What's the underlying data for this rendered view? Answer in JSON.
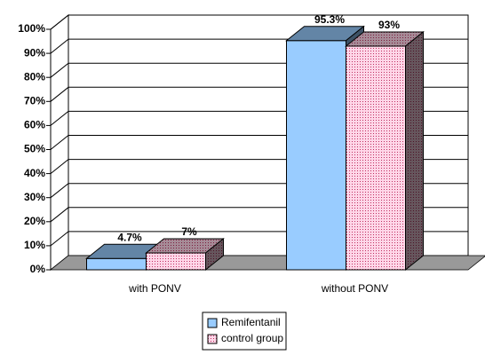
{
  "chart_data": {
    "type": "bar3d",
    "categories": [
      "with PONV",
      "without PONV"
    ],
    "series": [
      {
        "name": "Remifentanil",
        "color": "#99ccff",
        "values": [
          4.7,
          95.3
        ],
        "value_labels": [
          "4.7%",
          "95.3%"
        ]
      },
      {
        "name": "control group",
        "color": "#ffd6e8",
        "values": [
          7,
          93
        ],
        "value_labels": [
          "7%",
          "93%"
        ]
      }
    ],
    "ylim": [
      0,
      100
    ],
    "yticks": [
      {
        "value": 0,
        "label": "0%"
      },
      {
        "value": 10,
        "label": "10%"
      },
      {
        "value": 20,
        "label": "20%"
      },
      {
        "value": 30,
        "label": "30%"
      },
      {
        "value": 40,
        "label": "40%"
      },
      {
        "value": 50,
        "label": "50%"
      },
      {
        "value": 60,
        "label": "60%"
      },
      {
        "value": 70,
        "label": "70%"
      },
      {
        "value": 80,
        "label": "80%"
      },
      {
        "value": 90,
        "label": "90%"
      },
      {
        "value": 100,
        "label": "100%"
      }
    ],
    "grid": true,
    "legend": "bottom"
  }
}
